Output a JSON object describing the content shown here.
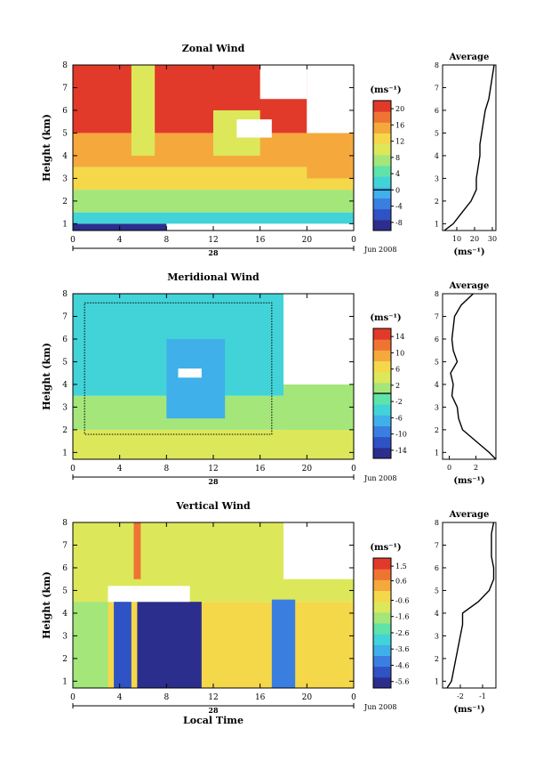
{
  "chart_data": [
    {
      "type": "heatmap",
      "title": "Zonal Wind",
      "ylabel": "Height (km)",
      "yticks": [
        "1",
        "2",
        "3",
        "4",
        "5",
        "6",
        "7",
        "8"
      ],
      "ylim": [
        0.7,
        8
      ],
      "xticks": [
        "0",
        "4",
        "8",
        "12",
        "16",
        "20",
        "0"
      ],
      "xlim": [
        0,
        24
      ],
      "date_marker": "28",
      "date_label": "Jun 2008",
      "colorbar": {
        "unit_label": "(ms⁻¹)",
        "tick_labels": [
          "20",
          "16",
          "12",
          "8",
          "4",
          "0",
          "-4",
          "-8"
        ],
        "tick_values": [
          20,
          16,
          12,
          8,
          4,
          0,
          -4,
          -8
        ],
        "range": [
          -10,
          22
        ],
        "zero_line": 0
      },
      "profile": {
        "title": "Average",
        "xlabel": "(ms⁻¹)",
        "xticks": [
          "10",
          "20",
          "30"
        ],
        "xtick_values": [
          10,
          20,
          30
        ],
        "xlim": [
          2,
          32
        ],
        "heights": [
          0.7,
          1.0,
          1.5,
          2.0,
          2.5,
          3.0,
          3.5,
          4.0,
          4.5,
          5.0,
          5.5,
          6.0,
          6.5,
          7.0,
          7.5,
          8.0
        ],
        "values": [
          3,
          8,
          13,
          18,
          21,
          21,
          22,
          23,
          23,
          24,
          25,
          26,
          28,
          29,
          30,
          31
        ]
      },
      "regions": [
        {
          "t0": 0,
          "t1": 8,
          "h0": 0.7,
          "h1": 1.0,
          "value": -8
        },
        {
          "t0": 0,
          "t1": 24,
          "h0": 1.0,
          "h1": 1.5,
          "value": 2
        },
        {
          "t0": 0,
          "t1": 24,
          "h0": 1.5,
          "h1": 2.5,
          "value": 6
        },
        {
          "t0": 0,
          "t1": 24,
          "h0": 2.5,
          "h1": 3.5,
          "value": 12
        },
        {
          "t0": 0,
          "t1": 24,
          "h0": 3.5,
          "h1": 5.0,
          "value": 16
        },
        {
          "t0": 0,
          "t1": 20,
          "h0": 5.0,
          "h1": 8.0,
          "value": 21
        },
        {
          "t0": 5,
          "t1": 7,
          "h0": 4.0,
          "h1": 8.0,
          "value": 9
        },
        {
          "t0": 12,
          "t1": 16,
          "h0": 4.0,
          "h1": 6.0,
          "value": 10
        },
        {
          "t0": 20,
          "t1": 24,
          "h0": 3.0,
          "h1": 5.0,
          "value": 15
        }
      ],
      "missing": [
        {
          "t0": 20,
          "t1": 24,
          "h0": 5.0,
          "h1": 8.0
        },
        {
          "t0": 16,
          "t1": 20,
          "h0": 6.5,
          "h1": 8.0
        },
        {
          "t0": 14,
          "t1": 17,
          "h0": 4.8,
          "h1": 5.6
        }
      ],
      "contours": []
    },
    {
      "type": "heatmap",
      "title": "Meridional Wind",
      "ylabel": "Height (km)",
      "yticks": [
        "1",
        "2",
        "3",
        "4",
        "5",
        "6",
        "7",
        "8"
      ],
      "ylim": [
        0.7,
        8
      ],
      "xticks": [
        "0",
        "4",
        "8",
        "12",
        "16",
        "20",
        "0"
      ],
      "xlim": [
        0,
        24
      ],
      "date_marker": "28",
      "date_label": "Jun 2008",
      "colorbar": {
        "unit_label": "(ms⁻¹)",
        "tick_labels": [
          "14",
          "10",
          "6",
          "2",
          "-2",
          "-6",
          "-10",
          "-14"
        ],
        "tick_values": [
          14,
          10,
          6,
          2,
          -2,
          -6,
          -10,
          -14
        ],
        "range": [
          -16,
          16
        ],
        "zero_line": 0
      },
      "profile": {
        "title": "Average",
        "xlabel": "(ms⁻¹)",
        "xticks": [
          "0",
          "2"
        ],
        "xtick_values": [
          0,
          2
        ],
        "xlim": [
          -0.5,
          3.5
        ],
        "heights": [
          0.7,
          1.0,
          1.5,
          2.0,
          2.5,
          3.0,
          3.5,
          4.0,
          4.5,
          5.0,
          5.5,
          6.0,
          6.5,
          7.0,
          7.5,
          8.0
        ],
        "values": [
          3.5,
          3.0,
          2.0,
          1.0,
          0.7,
          0.6,
          0.2,
          0.3,
          0.1,
          0.6,
          0.3,
          0.2,
          0.3,
          0.4,
          0.9,
          1.8
        ]
      },
      "regions": [
        {
          "t0": 0,
          "t1": 24,
          "h0": 0.7,
          "h1": 2.0,
          "value": 3
        },
        {
          "t0": 0,
          "t1": 24,
          "h0": 2.0,
          "h1": 3.5,
          "value": 1
        },
        {
          "t0": 0,
          "t1": 18,
          "h0": 3.5,
          "h1": 8.0,
          "value": -3
        },
        {
          "t0": 8,
          "t1": 13,
          "h0": 2.5,
          "h1": 6.0,
          "value": -8
        },
        {
          "t0": 3,
          "t1": 6,
          "h0": 5.0,
          "h1": 7.5,
          "value": -5
        },
        {
          "t0": 18,
          "t1": 24,
          "h0": 2.0,
          "h1": 4.0,
          "value": 0
        }
      ],
      "missing": [
        {
          "t0": 18,
          "t1": 24,
          "h0": 4.0,
          "h1": 8.0
        },
        {
          "t0": 9,
          "t1": 11,
          "h0": 4.3,
          "h1": 4.7
        }
      ],
      "contours": [
        {
          "t0": 1,
          "t1": 17,
          "h0": 1.8,
          "h1": 7.6
        }
      ]
    },
    {
      "type": "heatmap",
      "title": "Vertical Wind",
      "ylabel": "Height (km)",
      "yticks": [
        "1",
        "2",
        "3",
        "4",
        "5",
        "6",
        "7",
        "8"
      ],
      "ylim": [
        0.7,
        8
      ],
      "xticks": [
        "0",
        "4",
        "8",
        "12",
        "16",
        "20",
        "0"
      ],
      "xlim": [
        0,
        24
      ],
      "xlabel": "Local Time",
      "date_marker": "28",
      "date_label": "Jun 2008",
      "colorbar": {
        "unit_label": "(ms⁻¹)",
        "tick_labels": [
          "1.5",
          "0.6",
          "-0.6",
          "-1.6",
          "-2.6",
          "-3.6",
          "-4.6",
          "-5.6"
        ],
        "tick_values": [
          1.5,
          0.6,
          -0.6,
          -1.6,
          -2.6,
          -3.6,
          -4.6,
          -5.6
        ],
        "range": [
          -6,
          2
        ],
        "zero_line": null
      },
      "profile": {
        "title": "Average",
        "xlabel": "(ms⁻¹)",
        "xticks": [
          "-2",
          "-1"
        ],
        "xtick_values": [
          -2,
          -1
        ],
        "xlim": [
          -2.8,
          -0.4
        ],
        "heights": [
          0.7,
          1.0,
          1.5,
          2.0,
          2.5,
          3.0,
          3.5,
          4.0,
          4.5,
          5.0,
          5.5,
          6.0,
          6.5,
          7.0,
          7.5,
          8.0
        ],
        "values": [
          -2.6,
          -2.4,
          -2.3,
          -2.2,
          -2.1,
          -2.0,
          -1.9,
          -1.9,
          -1.2,
          -0.7,
          -0.5,
          -0.5,
          -0.6,
          -0.6,
          -0.6,
          -0.5
        ]
      },
      "regions": [
        {
          "t0": 0,
          "t1": 24,
          "h0": 0.7,
          "h1": 4.5,
          "value": -0.5
        },
        {
          "t0": 0,
          "t1": 24,
          "h0": 4.5,
          "h1": 8.0,
          "value": -1.2
        },
        {
          "t0": 0,
          "t1": 3,
          "h0": 0.7,
          "h1": 4.5,
          "value": -2.0
        },
        {
          "t0": 3.5,
          "t1": 5,
          "h0": 0.7,
          "h1": 4.6,
          "value": -5.0
        },
        {
          "t0": 5.5,
          "t1": 11,
          "h0": 0.7,
          "h1": 4.5,
          "value": -5.6
        },
        {
          "t0": 17,
          "t1": 19,
          "h0": 0.7,
          "h1": 4.6,
          "value": -4.5
        },
        {
          "t0": 5.2,
          "t1": 5.8,
          "h0": 5.5,
          "h1": 8.0,
          "value": 1.2
        }
      ],
      "missing": [
        {
          "t0": 18,
          "t1": 24,
          "h0": 5.5,
          "h1": 8.0
        },
        {
          "t0": 3,
          "t1": 10,
          "h0": 4.5,
          "h1": 5.2
        }
      ],
      "contours": []
    }
  ]
}
